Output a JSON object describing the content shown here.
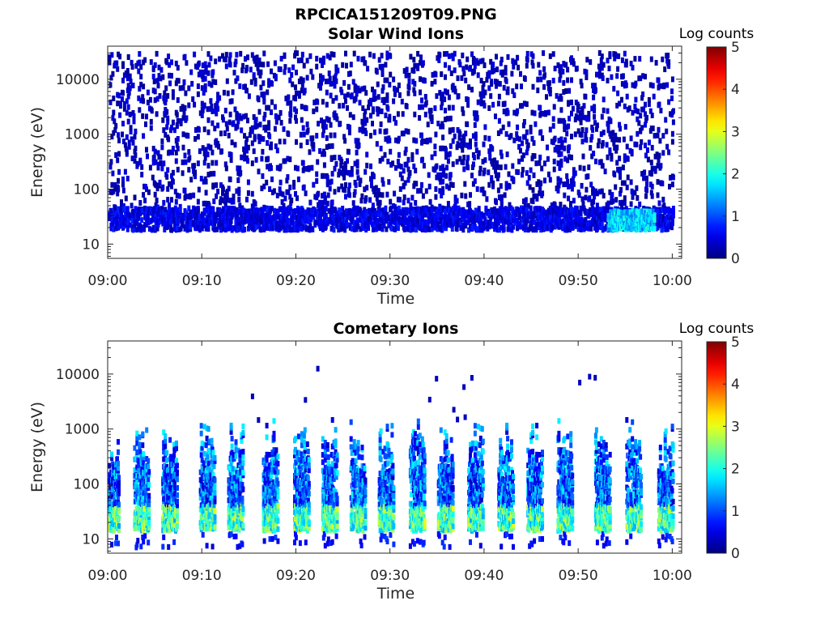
{
  "figure": {
    "filename": "RPCICA151209T09.PNG"
  },
  "colormap": "jet",
  "chart_data": [
    {
      "type": "heatmap",
      "title": "Solar Wind Ions",
      "xlabel": "Time",
      "ylabel": "Energy (eV)",
      "y_scale": "log",
      "ylim": [
        5.5,
        40000
      ],
      "x_range": [
        "09:00",
        "10:01"
      ],
      "x_ticks": [
        "09:00",
        "09:10",
        "09:20",
        "09:30",
        "09:40",
        "09:50",
        "10:00"
      ],
      "y_ticks": [
        "10",
        "100",
        "1000",
        "10000"
      ],
      "y_tick_values": [
        10,
        100,
        1000,
        10000
      ],
      "colorbar": {
        "title": "Log counts",
        "ticks": [
          "0",
          "1",
          "2",
          "3",
          "4",
          "5"
        ],
        "range": [
          0,
          5
        ]
      },
      "description_of_data": "Sparse scattered counts (log counts ~0.2-0.6) from ~50 eV to ~30 keV, denser band at ~20-40 eV with values up to ~2 near 09:53-09:58",
      "features": [
        {
          "time_min": [
            0,
            60
          ],
          "energy_ev": [
            40,
            30000
          ],
          "log_counts": [
            0.1,
            0.5
          ],
          "density": 0.045
        },
        {
          "time_min": [
            0,
            60
          ],
          "energy_ev": [
            18,
            45
          ],
          "log_counts": [
            0.2,
            0.8
          ],
          "density": 0.3
        },
        {
          "time_min": [
            53,
            58
          ],
          "energy_ev": [
            18,
            40
          ],
          "log_counts": [
            1.2,
            2.1
          ],
          "density": 0.5
        }
      ]
    },
    {
      "type": "heatmap",
      "title": "Cometary Ions",
      "xlabel": "Time",
      "ylabel": "Energy (eV)",
      "y_scale": "log",
      "ylim": [
        5.5,
        40000
      ],
      "x_range": [
        "09:00",
        "10:01"
      ],
      "x_ticks": [
        "09:00",
        "09:10",
        "09:20",
        "09:30",
        "09:40",
        "09:50",
        "10:00"
      ],
      "y_ticks": [
        "10",
        "100",
        "1000",
        "10000"
      ],
      "y_tick_values": [
        10,
        100,
        1000,
        10000
      ],
      "colorbar": {
        "title": "Log counts",
        "ticks": [
          "0",
          "1",
          "2",
          "3",
          "4",
          "5"
        ],
        "range": [
          0,
          5
        ]
      },
      "description_of_data": "Periodic vertical bursts roughly every 3 minutes extending from ~10 eV to ~1 keV; core at ~15-40 eV with log counts 1.5-3",
      "burst_times_min": [
        0.3,
        3.5,
        6.5,
        10.5,
        13.5,
        17.2,
        20.5,
        23.5,
        26.5,
        29.5,
        32.8,
        35.8,
        39.0,
        42.2,
        45.3,
        48.5,
        52.5,
        55.8,
        59.2
      ],
      "core_band_ev": [
        14,
        40
      ],
      "core_log_counts": [
        1.4,
        3.0
      ],
      "extent_ev": [
        7,
        1500
      ]
    }
  ]
}
